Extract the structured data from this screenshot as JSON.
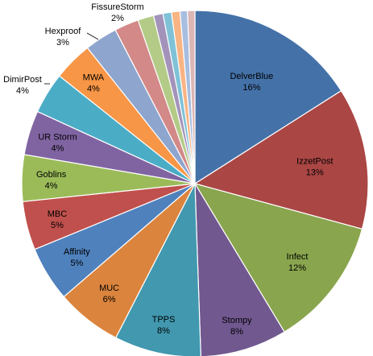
{
  "chart_data": {
    "type": "pie",
    "title": "",
    "slices": [
      {
        "label": "DelverBlue",
        "pct_label": "16%",
        "value": 16.2,
        "color": "#4472A8"
      },
      {
        "label": "IzzetPost",
        "pct_label": "13%",
        "value": 13.4,
        "color": "#AA4644"
      },
      {
        "label": "Infect",
        "pct_label": "12%",
        "value": 12.3,
        "color": "#89A54E"
      },
      {
        "label": "Stompy",
        "pct_label": "8%",
        "value": 8.2,
        "color": "#71588F"
      },
      {
        "label": "TPPS",
        "pct_label": "8%",
        "value": 8.2,
        "color": "#4198AF"
      },
      {
        "label": "MUC",
        "pct_label": "6%",
        "value": 6.2,
        "color": "#DB843D"
      },
      {
        "label": "Affinity",
        "pct_label": "5%",
        "value": 5.2,
        "color": "#4F81BD"
      },
      {
        "label": "MBC",
        "pct_label": "5%",
        "value": 4.6,
        "color": "#C0504D"
      },
      {
        "label": "Goblins",
        "pct_label": "4%",
        "value": 4.4,
        "color": "#9BBB59"
      },
      {
        "label": "UR Storm",
        "pct_label": "4%",
        "value": 4.2,
        "color": "#8064A2"
      },
      {
        "label": "DimirPost",
        "pct_label": "4%",
        "value": 3.9,
        "color": "#4BACC6"
      },
      {
        "label": "MWA",
        "pct_label": "4%",
        "value": 3.7,
        "color": "#F79646"
      },
      {
        "label": "Hexproof",
        "pct_label": "3%",
        "value": 3.1,
        "color": "#8EA5CE"
      },
      {
        "label": "FissureStorm",
        "pct_label": "2%",
        "value": 2.3,
        "color": "#D28987"
      },
      {
        "label": "",
        "pct_label": "",
        "value": 1.5,
        "color": "#B3CB87"
      },
      {
        "label": "",
        "pct_label": "",
        "value": 0.9,
        "color": "#A393BA"
      },
      {
        "label": "",
        "pct_label": "",
        "value": 0.8,
        "color": "#7FC2D8"
      },
      {
        "label": "",
        "pct_label": "",
        "value": 0.8,
        "color": "#F9B483"
      },
      {
        "label": "",
        "pct_label": "",
        "value": 0.7,
        "color": "#A8BEE0"
      },
      {
        "label": "",
        "pct_label": "",
        "value": 0.7,
        "color": "#DAB6B5"
      }
    ]
  }
}
